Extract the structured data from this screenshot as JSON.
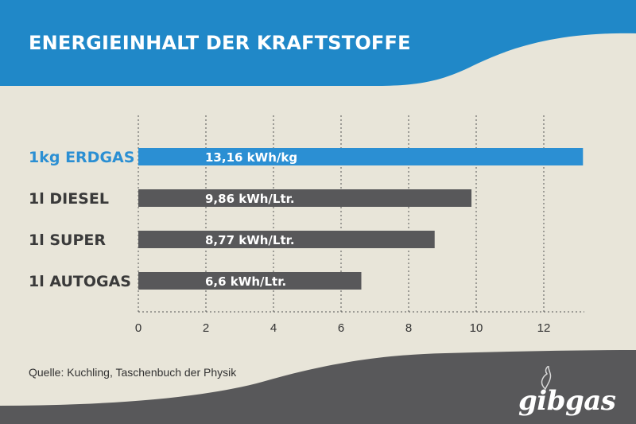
{
  "header": {
    "title": "ENERGIEINHALT DER KRAFTSTOFFE"
  },
  "source": "Quelle: Kuchling, Taschenbuch der Physik",
  "logo": {
    "text": "gibgas"
  },
  "colors": {
    "header": "#2088c8",
    "background": "#e8e5d9",
    "footer": "#58585a",
    "highlight_bar": "#2b8fd3",
    "default_bar": "#58585a",
    "highlight_label": "#2b8fd3",
    "default_label": "#3a3a3a"
  },
  "chart_data": {
    "type": "bar",
    "orientation": "horizontal",
    "categories": [
      "1kg ERDGAS",
      "1l DIESEL",
      "1l SUPER",
      "1l AUTOGAS"
    ],
    "values": [
      13.16,
      9.86,
      8.77,
      6.6
    ],
    "data_labels": [
      "13,16 kWh/kg",
      "9,86 kWh/Ltr.",
      "8,77 kWh/Ltr.",
      "6,6 kWh/Ltr."
    ],
    "highlight_index": 0,
    "xlim": [
      0,
      13.2
    ],
    "xticks": [
      0,
      2,
      4,
      6,
      8,
      10,
      12
    ],
    "grid": true,
    "title": "ENERGIEINHALT DER KRAFTSTOFFE"
  }
}
